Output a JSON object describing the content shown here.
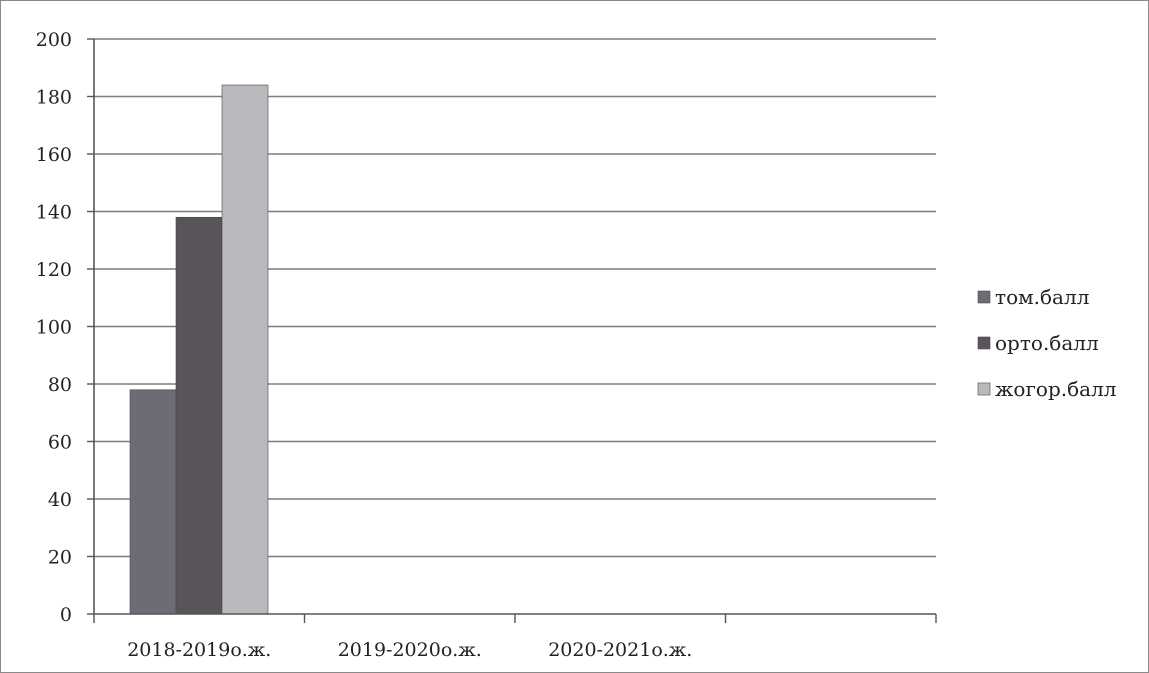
{
  "chart_data": {
    "type": "bar",
    "title": "",
    "xlabel": "",
    "ylabel": "",
    "categories": [
      "2018-2019о.ж.",
      "2019-2020о.ж.",
      "2020-2021о.ж."
    ],
    "series": [
      {
        "name": "том.балл",
        "values": [
          78,
          null,
          null
        ],
        "color": "#6f6b74"
      },
      {
        "name": "орто.балл",
        "values": [
          138,
          null,
          null
        ],
        "color": "#58545a"
      },
      {
        "name": "жогор.балл",
        "values": [
          184,
          null,
          null
        ],
        "color": "#b9b8bd"
      }
    ],
    "ylim": [
      0,
      200
    ],
    "y_ticks": [
      0,
      20,
      40,
      60,
      80,
      100,
      120,
      140,
      160,
      180,
      200
    ],
    "grid": true,
    "legend_position": "right"
  }
}
